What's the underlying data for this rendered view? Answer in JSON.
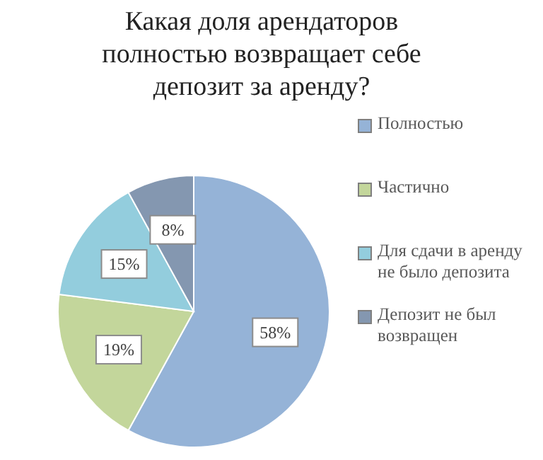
{
  "chart_data": {
    "type": "pie",
    "title": "Какая доля арендаторов полностью возвращает себе депозит за аренду?",
    "categories": [
      "Полностью",
      "Частично",
      "Для сдачи в аренду не было депозита",
      "Депозит не был возвращен"
    ],
    "values": [
      58,
      19,
      15,
      8
    ],
    "colors": [
      "#95b3d7",
      "#c3d69b",
      "#93cddd",
      "#8497b0"
    ],
    "value_labels": [
      "58%",
      "19%",
      "15%",
      "8%"
    ],
    "legend": "right"
  }
}
